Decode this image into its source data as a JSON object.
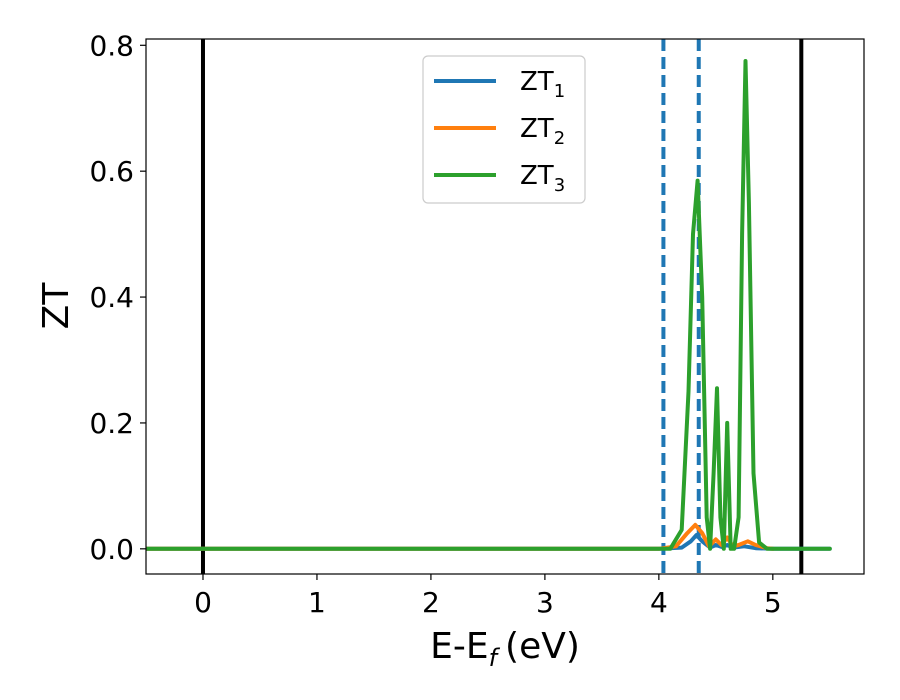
{
  "chart_data": {
    "type": "line",
    "xlabel": "E-E",
    "xlabel_sub": "f",
    "xlabel_unit": "(eV)",
    "ylabel": "ZT",
    "xlim": [
      -0.5,
      5.8
    ],
    "ylim": [
      -0.04,
      0.81
    ],
    "x_ticks": [
      0,
      1,
      2,
      3,
      4,
      5
    ],
    "x_tick_labels": [
      "0",
      "1",
      "2",
      "3",
      "4",
      "5"
    ],
    "y_ticks": [
      0.0,
      0.2,
      0.4,
      0.6,
      0.8
    ],
    "y_tick_labels": [
      "0.0",
      "0.2",
      "0.4",
      "0.6",
      "0.8"
    ],
    "grid": false,
    "legend_position": "top-center",
    "vertical_lines": [
      {
        "x": 0.0,
        "style": "solid",
        "color": "#000000"
      },
      {
        "x": 4.04,
        "style": "dashed",
        "color": "#1f77b4"
      },
      {
        "x": 4.35,
        "style": "dashed",
        "color": "#1f77b4"
      },
      {
        "x": 5.25,
        "style": "solid",
        "color": "#000000"
      }
    ],
    "series": [
      {
        "name": "ZT",
        "name_sub": "1",
        "color": "#1f77b4",
        "x": [
          -0.5,
          4.0,
          4.2,
          4.28,
          4.33,
          4.38,
          4.45,
          4.5,
          4.55,
          4.6,
          4.65,
          4.75,
          4.85,
          5.0,
          5.5
        ],
        "y": [
          0,
          0,
          0.002,
          0.012,
          0.022,
          0.012,
          0.002,
          0.006,
          0.003,
          0.006,
          0.002,
          0.004,
          0.001,
          0,
          0
        ]
      },
      {
        "name": "ZT",
        "name_sub": "2",
        "color": "#ff7f0e",
        "x": [
          -0.5,
          4.0,
          4.15,
          4.25,
          4.32,
          4.38,
          4.44,
          4.5,
          4.55,
          4.6,
          4.65,
          4.7,
          4.78,
          4.85,
          4.95,
          5.0
        ],
        "y": [
          0,
          0,
          0.004,
          0.025,
          0.038,
          0.025,
          0.004,
          0.015,
          0.006,
          0.018,
          0.004,
          0.006,
          0.012,
          0.006,
          0.001,
          0
        ]
      },
      {
        "name": "ZT",
        "name_sub": "3",
        "color": "#2ca02c",
        "x": [
          -0.5,
          4.1,
          4.2,
          4.26,
          4.3,
          4.34,
          4.38,
          4.42,
          4.45,
          4.48,
          4.51,
          4.54,
          4.57,
          4.6,
          4.63,
          4.66,
          4.7,
          4.73,
          4.76,
          4.79,
          4.83,
          4.88,
          4.95,
          5.5
        ],
        "y": [
          0,
          0,
          0.03,
          0.25,
          0.5,
          0.585,
          0.4,
          0.05,
          0.0,
          0.12,
          0.255,
          0.05,
          0.0,
          0.2,
          0.0,
          0.0,
          0.05,
          0.5,
          0.775,
          0.55,
          0.12,
          0.01,
          0,
          0
        ]
      }
    ]
  }
}
